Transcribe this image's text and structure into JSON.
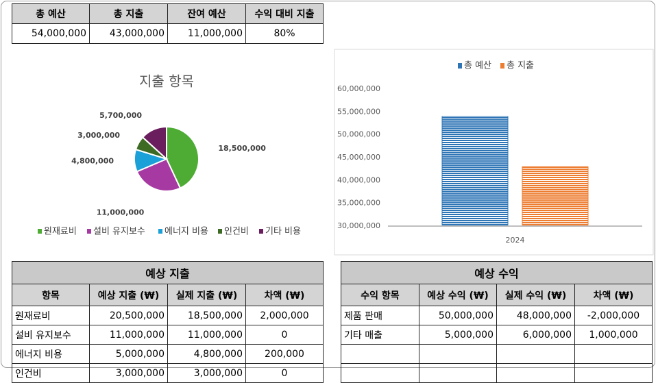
{
  "summary_table": {
    "header": [
      "총 예산",
      "총 지출",
      "잔여 예산",
      "수익 대비 지출"
    ],
    "rows": [
      [
        "54,000,000",
        "43,000,000",
        "11,000,000",
        "80%"
      ]
    ]
  },
  "pie_chart": {
    "type": "pie",
    "title": "지출 항목",
    "categories": [
      "원재료비",
      "설비 유지보수",
      "에너지 비용",
      "인건비",
      "기타 비용"
    ],
    "values": [
      18500000,
      11000000,
      4800000,
      3000000,
      5700000
    ],
    "value_labels": [
      "18,500,000",
      "11,000,000",
      "4,800,000",
      "3,000,000",
      "5,700,000"
    ],
    "colors": [
      "#4eac34",
      "#a63aa2",
      "#1ba0d8",
      "#3d6b23",
      "#6b1e5e"
    ],
    "legend": "bottom"
  },
  "bar_chart": {
    "type": "bar",
    "categories": [
      "2024"
    ],
    "series": [
      {
        "name": "총 예산",
        "color": "#2e75b6",
        "values": [
          54000000
        ]
      },
      {
        "name": "총 지출",
        "color": "#ed7d31",
        "values": [
          43000000
        ]
      }
    ],
    "ylim": [
      30000000,
      60000000
    ],
    "yticks": [
      {
        "value": 30000000,
        "label": "30,000,000"
      },
      {
        "value": 35000000,
        "label": "35,000,000"
      },
      {
        "value": 40000000,
        "label": "40,000,000"
      },
      {
        "value": 45000000,
        "label": "45,000,000"
      },
      {
        "value": 50000000,
        "label": "50,000,000"
      },
      {
        "value": 55000000,
        "label": "55,000,000"
      },
      {
        "value": 60000000,
        "label": "60,000,000"
      }
    ],
    "grid": false,
    "legend": "top"
  },
  "expense_table": {
    "title": "예상 지출",
    "header": [
      "항목",
      "예상 지출 (₩)",
      "실제 지출 (₩)",
      "차액 (₩)"
    ],
    "rows": [
      [
        "원재료비",
        "20,500,000",
        "18,500,000",
        "2,000,000"
      ],
      [
        "설비 유지보수",
        "11,000,000",
        "11,000,000",
        "0"
      ],
      [
        "에너지 비용",
        "5,000,000",
        "4,800,000",
        "200,000"
      ],
      [
        "인건비",
        "3,000,000",
        "3,000,000",
        "0"
      ]
    ]
  },
  "income_table": {
    "title": "예상 수익",
    "header": [
      "수익 항목",
      "예상 수익 (₩)",
      "실제 수익 (₩)",
      "차액 (₩)"
    ],
    "rows": [
      [
        "제품 판매",
        "50,000,000",
        "48,000,000",
        "-2,000,000"
      ],
      [
        "기타 매출",
        "5,000,000",
        "6,000,000",
        "1,000,000"
      ]
    ]
  }
}
